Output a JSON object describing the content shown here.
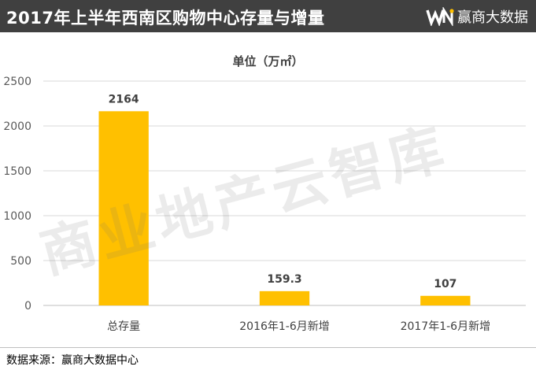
{
  "header": {
    "title": "2017年上半年西南区购物中心存量与增量",
    "brand_name": "赢商大数据",
    "brand_logo": "wn-logo-icon"
  },
  "watermark": "商业地产云智库",
  "source": "数据来源：赢商大数据中心",
  "colors": {
    "header_bg": "#404040",
    "bar": "#FFC000",
    "grid": "#d9d9d9"
  },
  "chart_data": {
    "type": "bar",
    "title": "",
    "unit_label": "单位（万㎡）",
    "categories": [
      "总存量",
      "2016年1-6月新增",
      "2017年1-6月新增"
    ],
    "values": [
      2164,
      159.3,
      107
    ],
    "data_labels": [
      "2164",
      "159.3",
      "107"
    ],
    "yticks": [
      "0",
      "500",
      "1000",
      "1500",
      "2000",
      "2500"
    ],
    "ylim": [
      0,
      2500
    ],
    "grid": true,
    "legend": "none"
  }
}
